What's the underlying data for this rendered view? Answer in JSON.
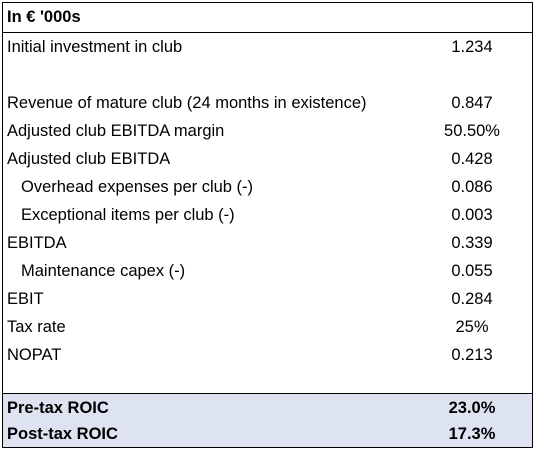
{
  "header": {
    "title": "In € '000s"
  },
  "rows": [
    {
      "label": "Initial investment in club",
      "value": "1.234"
    },
    {
      "label": "Revenue of mature club (24 months in existence)",
      "value": "0.847"
    },
    {
      "label": "Adjusted club EBITDA margin",
      "value": "50.50%"
    },
    {
      "label": "Adjusted club EBITDA",
      "value": "0.428"
    },
    {
      "label": "Overhead expenses per club (-)",
      "value": "0.086"
    },
    {
      "label": "Exceptional items per club (-)",
      "value": "0.003"
    },
    {
      "label": "EBITDA",
      "value": "0.339"
    },
    {
      "label": "Maintenance capex (-)",
      "value": "0.055"
    },
    {
      "label": "EBIT",
      "value": "0.284"
    },
    {
      "label": "Tax rate",
      "value": "25%"
    },
    {
      "label": "NOPAT",
      "value": "0.213"
    },
    {
      "label": "Pre-tax ROIC",
      "value": "23.0%"
    },
    {
      "label": "Post-tax ROIC",
      "value": "17.3%"
    }
  ],
  "colors": {
    "summary_fill": "#dde3f1",
    "border": "#000000"
  }
}
